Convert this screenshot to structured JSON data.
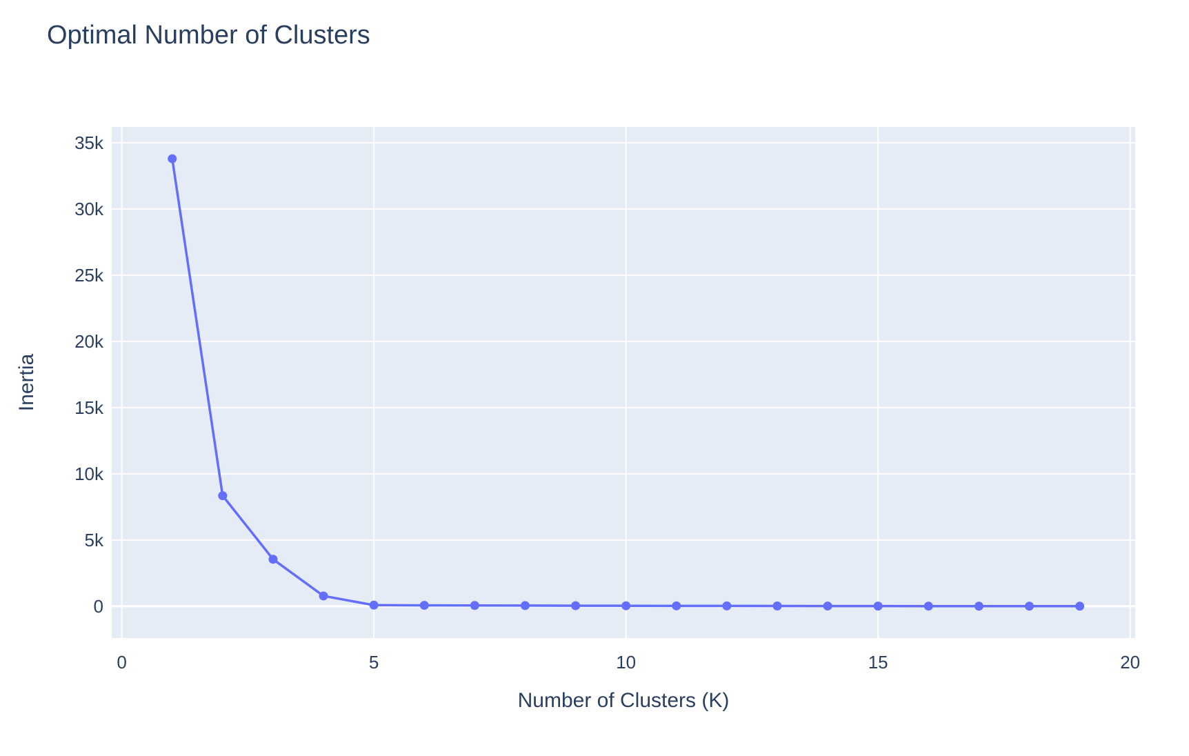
{
  "chart_data": {
    "type": "line",
    "title": "Optimal Number of Clusters",
    "xlabel": "Number of Clusters (K)",
    "ylabel": "Inertia",
    "xlim": [
      -0.2,
      20.1
    ],
    "ylim": [
      -2400,
      36200
    ],
    "x_ticks": [
      0,
      5,
      10,
      15,
      20
    ],
    "x_tick_labels": [
      "0",
      "5",
      "10",
      "15",
      "20"
    ],
    "y_ticks": [
      0,
      5000,
      10000,
      15000,
      20000,
      25000,
      30000,
      35000
    ],
    "y_tick_labels": [
      "0",
      "5k",
      "10k",
      "15k",
      "20k",
      "25k",
      "30k",
      "35k"
    ],
    "grid": true,
    "colors": {
      "plot_bg": "#e5ecf6",
      "grid": "#ffffff",
      "line": "#636efa",
      "text": "#2a3f5f"
    },
    "series": [
      {
        "x": [
          1,
          2,
          3,
          4,
          5,
          6,
          7,
          8,
          9,
          10,
          11,
          12,
          13,
          14,
          15,
          16,
          17,
          18,
          19
        ],
        "values": [
          33800,
          8350,
          3550,
          780,
          85,
          70,
          60,
          52,
          45,
          38,
          32,
          27,
          22,
          18,
          15,
          12,
          10,
          8,
          6
        ]
      }
    ]
  }
}
